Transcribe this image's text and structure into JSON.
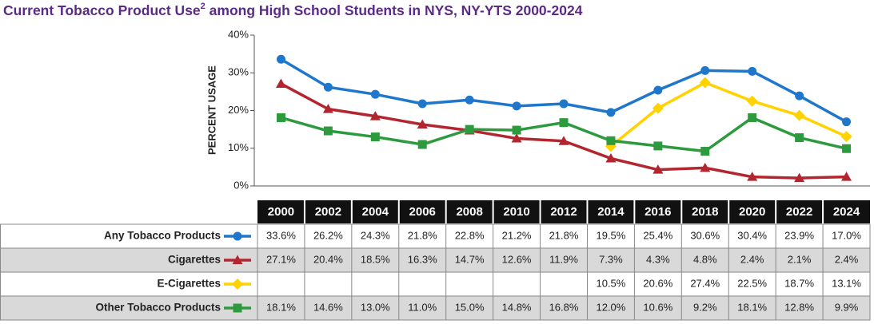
{
  "chart_data": {
    "type": "line",
    "title": {
      "text": "Current Tobacco Product Use",
      "superscript": "2",
      "rest": " among High School Students in NYS, NY-YTS 2000-2024"
    },
    "y_label": "PERCENT USAGE",
    "categories": [
      "2000",
      "2002",
      "2004",
      "2006",
      "2008",
      "2010",
      "2012",
      "2014",
      "2016",
      "2018",
      "2020",
      "2022",
      "2024"
    ],
    "ylim": [
      0,
      40
    ],
    "yticks": [
      {
        "value": 0,
        "label": "0%"
      },
      {
        "value": 10,
        "label": "10%"
      },
      {
        "value": 20,
        "label": "20%"
      },
      {
        "value": 30,
        "label": "30%"
      },
      {
        "value": 40,
        "label": "40%"
      }
    ],
    "series": [
      {
        "name": "Any Tobacco Products",
        "color": "#1f77cc",
        "marker": "circle",
        "values": [
          33.6,
          26.2,
          24.3,
          21.8,
          22.8,
          21.2,
          21.8,
          19.5,
          25.4,
          30.6,
          30.4,
          23.9,
          17.0
        ],
        "value_labels": [
          "33.6%",
          "26.2%",
          "24.3%",
          "21.8%",
          "22.8%",
          "21.2%",
          "21.8%",
          "19.5%",
          "25.4%",
          "30.6%",
          "30.4%",
          "23.9%",
          "17.0%"
        ]
      },
      {
        "name": "Cigarettes",
        "color": "#b3262f",
        "marker": "triangle",
        "values": [
          27.1,
          20.4,
          18.5,
          16.3,
          14.7,
          12.6,
          11.9,
          7.3,
          4.3,
          4.8,
          2.4,
          2.1,
          2.4
        ],
        "value_labels": [
          "27.1%",
          "20.4%",
          "18.5%",
          "16.3%",
          "14.7%",
          "12.6%",
          "11.9%",
          "7.3%",
          "4.3%",
          "4.8%",
          "2.4%",
          "2.1%",
          "2.4%"
        ]
      },
      {
        "name": "E-Cigarettes",
        "color": "#ffd200",
        "marker": "diamond",
        "values": [
          null,
          null,
          null,
          null,
          null,
          null,
          null,
          10.5,
          20.6,
          27.4,
          22.5,
          18.7,
          13.1
        ],
        "value_labels": [
          null,
          null,
          null,
          null,
          null,
          null,
          null,
          "10.5%",
          "20.6%",
          "27.4%",
          "22.5%",
          "18.7%",
          "13.1%"
        ]
      },
      {
        "name": "Other Tobacco Products",
        "color": "#2e9a3e",
        "marker": "square",
        "values": [
          18.1,
          14.6,
          13.0,
          11.0,
          15.0,
          14.8,
          16.8,
          12.0,
          10.6,
          9.2,
          18.1,
          12.8,
          9.9
        ],
        "value_labels": [
          "18.1%",
          "14.6%",
          "13.0%",
          "11.0%",
          "15.0%",
          "14.8%",
          "16.8%",
          "12.0%",
          "10.6%",
          "9.2%",
          "18.1%",
          "12.8%",
          "9.9%"
        ]
      }
    ]
  }
}
